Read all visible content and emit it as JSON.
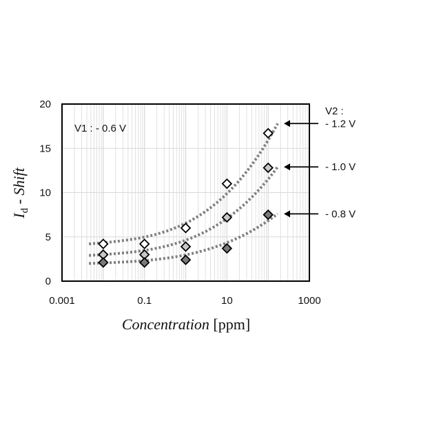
{
  "chart_data": {
    "type": "scatter",
    "x_scale": "log",
    "xlim": [
      0.001,
      1000
    ],
    "ylim": [
      0,
      20
    ],
    "grid": true,
    "x_ticks": [
      "0.001",
      "0.1",
      "10",
      "1000"
    ],
    "y_ticks": [
      "0",
      "5",
      "10",
      "15",
      "20"
    ],
    "xlabel_italic": "Concentration",
    "xlabel_unit": "[ppm]",
    "ylabel_main": "I",
    "ylabel_sub": "d",
    "ylabel_rest": " - Shift",
    "annotation_v1": "V1 : - 0.6 V",
    "legend_header": "V2 :",
    "series": [
      {
        "name": "- 1.2 V",
        "marker_fill": "#ffffff",
        "x": [
          0.01,
          0.1,
          1,
          10,
          100
        ],
        "values": [
          4.2,
          4.2,
          6.0,
          11.0,
          16.7
        ],
        "trend": {
          "y0": 4.2,
          "y1": 17.8
        }
      },
      {
        "name": "- 1.0 V",
        "marker_fill": "#c8c8c8",
        "x": [
          0.01,
          0.1,
          1,
          10,
          100
        ],
        "values": [
          3.0,
          3.0,
          3.9,
          7.2,
          12.8
        ],
        "trend": {
          "y0": 2.9,
          "y1": 12.9
        }
      },
      {
        "name": "- 0.8 V",
        "marker_fill": "#7a7a7a",
        "x": [
          0.01,
          0.1,
          1,
          10,
          100
        ],
        "values": [
          2.1,
          2.1,
          2.4,
          3.7,
          7.5
        ],
        "trend": {
          "y0": 2.0,
          "y1": 7.6
        }
      }
    ],
    "colors": {
      "trend": "#808080",
      "grid": "#d9d9d9",
      "axis": "#000000"
    }
  }
}
